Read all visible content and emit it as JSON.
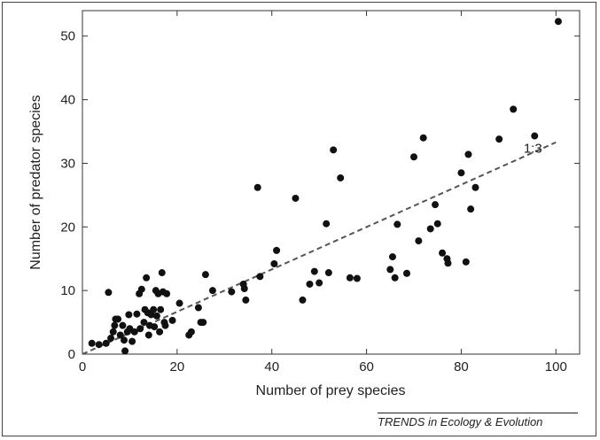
{
  "chart_data": {
    "type": "scatter",
    "xlabel": "Number of prey species",
    "ylabel": "Number of predator species",
    "xlim": [
      0,
      105
    ],
    "ylim": [
      0,
      54
    ],
    "xticks": [
      0,
      20,
      40,
      60,
      80,
      100
    ],
    "yticks": [
      0,
      10,
      20,
      30,
      40,
      50
    ],
    "grid": false,
    "trend_line": {
      "style": "dashed",
      "label": "1:3",
      "from": [
        0,
        0
      ],
      "to": [
        100,
        33.3
      ]
    },
    "points": [
      [
        2,
        1.7
      ],
      [
        3.5,
        1.5
      ],
      [
        5,
        1.7
      ],
      [
        5.5,
        9.7
      ],
      [
        6,
        2.5
      ],
      [
        6.5,
        3.5
      ],
      [
        6.8,
        4.5
      ],
      [
        7,
        5.5
      ],
      [
        7.5,
        5.5
      ],
      [
        8,
        3
      ],
      [
        8.5,
        4.5
      ],
      [
        8.8,
        2.2
      ],
      [
        9,
        0.5
      ],
      [
        9.5,
        3.5
      ],
      [
        9.8,
        6.2
      ],
      [
        10,
        4
      ],
      [
        10.5,
        2
      ],
      [
        11,
        3.5
      ],
      [
        11.5,
        6.3
      ],
      [
        12,
        9.5
      ],
      [
        12.2,
        4
      ],
      [
        12.5,
        10.2
      ],
      [
        13,
        5
      ],
      [
        13.2,
        7
      ],
      [
        13.5,
        12
      ],
      [
        13.8,
        6.5
      ],
      [
        14,
        3
      ],
      [
        14.2,
        4.5
      ],
      [
        14.5,
        6.2
      ],
      [
        15,
        7
      ],
      [
        15.2,
        4.3
      ],
      [
        15.5,
        10
      ],
      [
        15.7,
        6
      ],
      [
        16,
        9.5
      ],
      [
        16.3,
        3.5
      ],
      [
        16.5,
        7
      ],
      [
        16.8,
        12.8
      ],
      [
        17,
        9.8
      ],
      [
        17.3,
        5
      ],
      [
        17.5,
        4.5
      ],
      [
        17.8,
        9.5
      ],
      [
        19,
        5.3
      ],
      [
        20.5,
        8
      ],
      [
        22.5,
        3
      ],
      [
        23,
        3.5
      ],
      [
        24.5,
        7.3
      ],
      [
        25,
        5
      ],
      [
        25.5,
        5
      ],
      [
        26,
        12.5
      ],
      [
        27.5,
        10
      ],
      [
        31.5,
        9.8
      ],
      [
        34,
        11
      ],
      [
        34.2,
        10.3
      ],
      [
        34.5,
        8.5
      ],
      [
        37,
        26.2
      ],
      [
        37.5,
        12.2
      ],
      [
        40.5,
        14.2
      ],
      [
        41,
        16.3
      ],
      [
        45,
        24.5
      ],
      [
        46.5,
        8.5
      ],
      [
        48,
        11
      ],
      [
        49,
        13
      ],
      [
        50,
        11.2
      ],
      [
        51.5,
        20.5
      ],
      [
        52,
        12.8
      ],
      [
        53,
        32.1
      ],
      [
        54.5,
        27.7
      ],
      [
        56.5,
        12
      ],
      [
        58,
        11.9
      ],
      [
        65,
        13.3
      ],
      [
        65.5,
        15.3
      ],
      [
        66,
        12
      ],
      [
        66.5,
        20.4
      ],
      [
        68.5,
        12.7
      ],
      [
        70,
        31
      ],
      [
        71,
        17.8
      ],
      [
        72,
        34
      ],
      [
        73.5,
        19.7
      ],
      [
        74.5,
        23.5
      ],
      [
        75,
        20.5
      ],
      [
        76,
        15.9
      ],
      [
        77,
        15
      ],
      [
        77.2,
        14.3
      ],
      [
        80,
        28.5
      ],
      [
        81,
        14.5
      ],
      [
        81.5,
        31.4
      ],
      [
        82,
        22.8
      ],
      [
        83,
        26.2
      ],
      [
        88,
        33.8
      ],
      [
        91,
        38.5
      ],
      [
        95.5,
        34.3
      ],
      [
        100.5,
        52.3
      ]
    ]
  },
  "credit": "TRENDS in Ecology & Evolution"
}
